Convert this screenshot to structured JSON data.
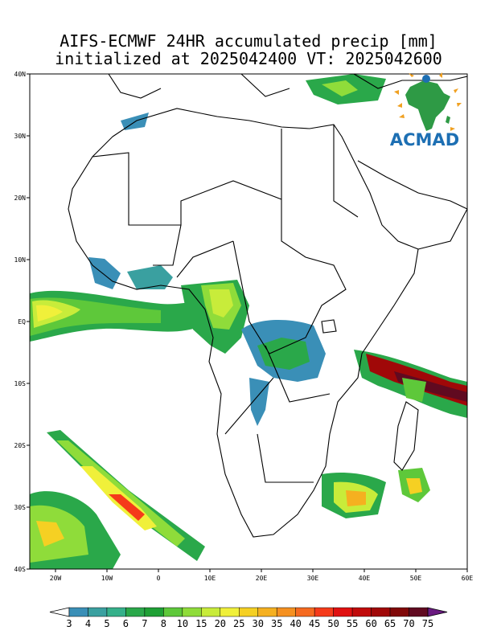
{
  "title": {
    "line1": "AIFS-ECMWF 24HR accumulated precip [mm]",
    "line2": "initialized at 2025042400 VT: 2025042600"
  },
  "logo": {
    "text": "ACMAD",
    "icon": "africa-map-logo-icon",
    "color": "#1d6fb3"
  },
  "map": {
    "lon_range": [
      -25,
      60
    ],
    "lat_range": [
      -40,
      40
    ],
    "lat_ticks": [
      "40N",
      "30N",
      "20N",
      "10N",
      "EQ",
      "10S",
      "20S",
      "30S",
      "40S"
    ],
    "lon_ticks": [
      "20W",
      "10W",
      "0",
      "10E",
      "20E",
      "30E",
      "40E",
      "50E",
      "60E"
    ]
  },
  "colorbar": {
    "labels": [
      "3",
      "4",
      "5",
      "6",
      "7",
      "8",
      "10",
      "15",
      "20",
      "25",
      "30",
      "35",
      "40",
      "45",
      "50",
      "55",
      "60",
      "65",
      "70",
      "75"
    ],
    "colors": [
      "#3a8fb7",
      "#3aa0a0",
      "#35b08a",
      "#2aa84a",
      "#1fa035",
      "#5ec83a",
      "#8fdc3a",
      "#c8ec3a",
      "#f0f03a",
      "#f5d023",
      "#f5b020",
      "#f59020",
      "#f56a20",
      "#f53a1a",
      "#e01010",
      "#c00a0a",
      "#a00808",
      "#800808",
      "#600a20"
    ],
    "under_color": "#ffffff",
    "over_color": "#6a1a80"
  }
}
